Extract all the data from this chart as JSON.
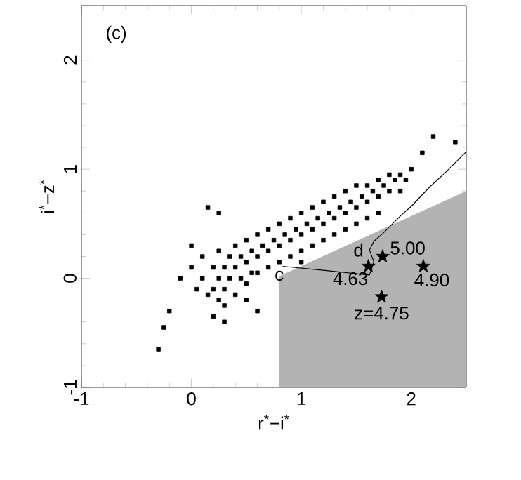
{
  "chart_data": {
    "type": "scatter",
    "xlabel": "r$^{*}$−i$^{*}$",
    "ylabel": "i$^{*}$−z$^{*}$",
    "xlim": [
      -1,
      2.5
    ],
    "ylim": [
      -1,
      2.5
    ],
    "xticks": [
      -1,
      0,
      1,
      2
    ],
    "yticks": [
      -1,
      0,
      1,
      2
    ],
    "series": [
      {
        "type": "area",
        "color": "#b3b3b3",
        "x": [
          0.8,
          0.8,
          2.5,
          2.5
        ],
        "values": [
          -1,
          0.02,
          0.8,
          -1
        ]
      },
      {
        "marker": "square",
        "color": "#000000",
        "x": [
          0.0,
          0.05,
          0.1,
          0.1,
          0.15,
          0.2,
          0.2,
          0.25,
          0.25,
          0.25,
          0.3,
          0.3,
          0.3,
          0.35,
          0.35,
          0.4,
          0.4,
          0.4,
          0.45,
          0.45,
          0.5,
          0.5,
          0.5,
          0.55,
          0.55,
          0.6,
          0.6,
          0.6,
          0.65,
          0.7,
          0.7,
          0.7,
          0.75,
          0.8,
          0.8,
          0.8,
          0.85,
          0.9,
          0.9,
          0.9,
          0.95,
          1.0,
          1.0,
          1.0,
          1.05,
          1.1,
          1.1,
          1.1,
          1.15,
          1.2,
          1.2,
          1.2,
          1.25,
          1.3,
          1.3,
          1.3,
          1.35,
          1.4,
          1.4,
          1.4,
          1.45,
          1.5,
          1.5,
          1.5,
          1.55,
          1.6,
          1.6,
          1.6,
          1.65,
          1.7,
          1.7,
          1.7,
          1.75,
          1.8,
          1.8,
          1.85,
          1.9,
          1.9,
          1.95,
          2.0,
          -0.2,
          -0.25,
          -0.3,
          0.15,
          0.25,
          -0.1,
          0.0,
          0.2,
          0.3,
          2.2,
          2.1,
          2.4,
          0.6,
          0.5,
          1.0
        ],
        "values": [
          0.1,
          -0.1,
          0.2,
          0.0,
          -0.15,
          0.1,
          -0.1,
          0.25,
          0.0,
          -0.2,
          0.1,
          -0.1,
          -0.25,
          0.2,
          0.0,
          0.3,
          0.1,
          -0.15,
          0.2,
          0.0,
          0.35,
          0.15,
          -0.05,
          0.25,
          0.05,
          0.4,
          0.2,
          0.05,
          0.3,
          0.45,
          0.25,
          0.1,
          0.35,
          0.5,
          0.3,
          0.15,
          0.4,
          0.55,
          0.35,
          0.2,
          0.45,
          0.6,
          0.4,
          0.25,
          0.5,
          0.65,
          0.45,
          0.3,
          0.55,
          0.7,
          0.5,
          0.35,
          0.6,
          0.75,
          0.55,
          0.4,
          0.65,
          0.8,
          0.6,
          0.45,
          0.7,
          0.85,
          0.65,
          0.5,
          0.75,
          0.85,
          0.7,
          0.55,
          0.8,
          0.9,
          0.75,
          0.6,
          0.85,
          0.95,
          0.8,
          0.9,
          0.95,
          0.8,
          0.9,
          1.0,
          -0.3,
          -0.45,
          -0.65,
          0.65,
          0.6,
          0.0,
          0.3,
          -0.35,
          -0.4,
          1.3,
          1.15,
          1.25,
          -0.3,
          -0.2,
          0.15
        ]
      },
      {
        "type": "line",
        "color": "#000000",
        "x": [
          0.83,
          1.23,
          1.62,
          1.66,
          1.62,
          1.66,
          1.74,
          1.91,
          2.0,
          2.17,
          2.3,
          2.5
        ],
        "values": [
          0.11,
          0.07,
          0.03,
          0.15,
          0.26,
          0.34,
          0.41,
          0.58,
          0.66,
          0.84,
          0.96,
          1.16
        ]
      },
      {
        "marker": "star",
        "color": "#000000",
        "x": [
          1.74,
          1.61,
          2.11,
          1.73
        ],
        "values": [
          0.2,
          0.11,
          0.11,
          -0.17
        ]
      }
    ],
    "annotations": [
      "(c)",
      {
        "text": "c",
        "x": 0.83,
        "y": 0.11
      },
      {
        "text": "d",
        "x": 1.62,
        "y": 0.26
      },
      {
        "text": "5.00",
        "x": 1.74,
        "y": 0.2
      },
      {
        "text": "4.63",
        "x": 1.61,
        "y": 0.11
      },
      {
        "text": "4.90",
        "x": 2.11,
        "y": 0.11
      },
      {
        "text": "z=4.75",
        "x": 1.73,
        "y": -0.17
      }
    ]
  }
}
